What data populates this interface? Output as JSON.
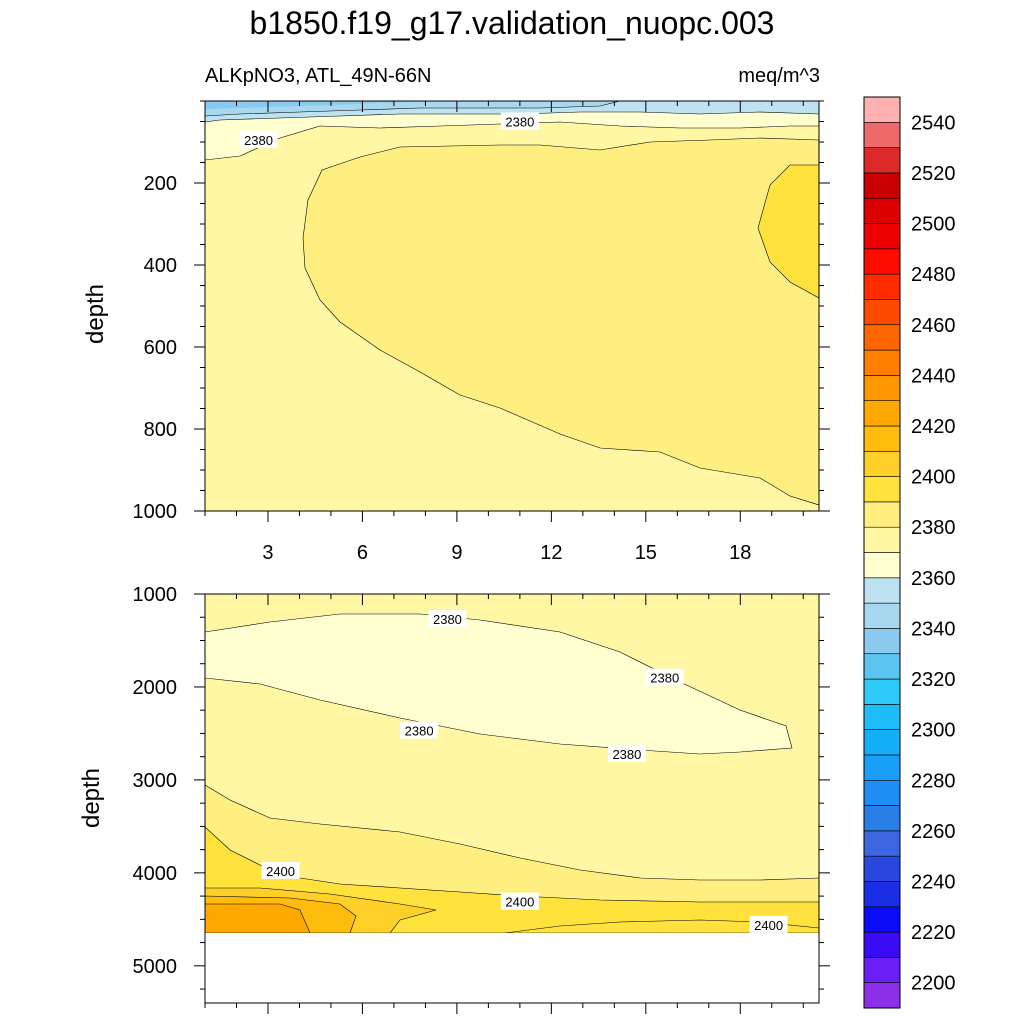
{
  "title": "b1850.f19_g17.validation_nuopc.003",
  "chart_data": {
    "type": "heatmap",
    "variable_label": "ALKpNO3, ATL_49N-66N",
    "units_label": "meq/m^3",
    "panels": [
      {
        "name": "upper",
        "ylabel": "depth",
        "xlim": [
          1,
          20.5
        ],
        "ylim": [
          0,
          1000
        ],
        "y_inverted": true,
        "xticks": [
          3,
          6,
          9,
          12,
          15,
          18
        ],
        "yticks": [
          200,
          400,
          600,
          800,
          1000
        ],
        "contour_labels": [
          {
            "text": "2380",
            "x": 2.7,
            "y": 95
          },
          {
            "text": "2380",
            "x": 11.0,
            "y": 50
          }
        ]
      },
      {
        "name": "lower",
        "ylabel": "depth",
        "xlim": [
          1,
          20.5
        ],
        "ylim": [
          1000,
          5400
        ],
        "y_inverted": true,
        "xticks": [
          3,
          6,
          9,
          12,
          15,
          18
        ],
        "yticks": [
          1000,
          2000,
          3000,
          4000,
          5000
        ],
        "contour_labels": [
          {
            "text": "2380",
            "x": 8.7,
            "y": 1270
          },
          {
            "text": "2380",
            "x": 15.6,
            "y": 1900
          },
          {
            "text": "2380",
            "x": 7.8,
            "y": 2470
          },
          {
            "text": "2380",
            "x": 14.4,
            "y": 2720
          },
          {
            "text": "2400",
            "x": 3.4,
            "y": 3980
          },
          {
            "text": "2400",
            "x": 11.0,
            "y": 4310
          },
          {
            "text": "2400",
            "x": 18.9,
            "y": 4560
          }
        ]
      }
    ],
    "colorbar": {
      "levels": [
        2200,
        2220,
        2240,
        2260,
        2280,
        2300,
        2320,
        2340,
        2360,
        2380,
        2400,
        2420,
        2440,
        2460,
        2480,
        2500,
        2520,
        2540
      ],
      "tick_labels": [
        "2200",
        "2220",
        "2240",
        "2260",
        "2280",
        "2300",
        "2320",
        "2340",
        "2360",
        "2380",
        "2400",
        "2420",
        "2440",
        "2460",
        "2480",
        "2500",
        "2520",
        "2540"
      ],
      "colors": [
        "#8b2fe8",
        "#6a1ef5",
        "#3a0cf5",
        "#0a0cf8",
        "#1a2ee6",
        "#2a48e0",
        "#3a66e0",
        "#2a7ee8",
        "#1e8ef4",
        "#1aa0f8",
        "#12aef8",
        "#1ebcf8",
        "#2ccaf8",
        "#5cc4f0",
        "#8acaee",
        "#a8d8f0",
        "#bde3f2",
        "#ffffd0",
        "#fff7a4",
        "#ffef80",
        "#ffe23c",
        "#ffd02a",
        "#ffbc0c",
        "#ffa800",
        "#ff9800",
        "#ff7e00",
        "#ff6600",
        "#ff4a00",
        "#ff2c00",
        "#ff0c00",
        "#ee0000",
        "#dc0000",
        "#ca0000",
        "#dc2a2a",
        "#ee6a6a",
        "#ffb0b0"
      ]
    }
  }
}
